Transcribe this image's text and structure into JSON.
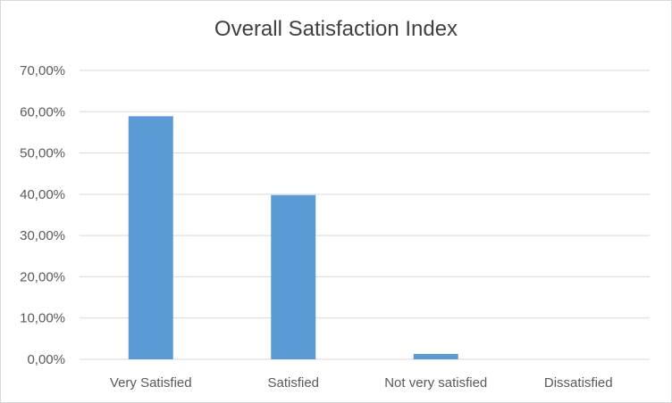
{
  "chart_data": {
    "type": "bar",
    "title": "Overall Satisfaction Index",
    "xlabel": "",
    "ylabel": "",
    "categories": [
      "Very Satisfied",
      "Satisfied",
      "Not very satisfied",
      "Dissatisfied"
    ],
    "values": [
      0.589,
      0.398,
      0.013,
      0.0
    ],
    "ylim": [
      0,
      0.7
    ],
    "y_ticks": [
      0,
      0.1,
      0.2,
      0.3,
      0.4,
      0.5,
      0.6,
      0.7
    ],
    "y_tick_labels": [
      "0,00%",
      "10,00%",
      "20,00%",
      "30,00%",
      "40,00%",
      "50,00%",
      "60,00%",
      "70,00%"
    ],
    "grid": true,
    "legend": "none",
    "colors": {
      "bar": "#5b9bd5",
      "grid": "#d9d9d9",
      "text": "#595959",
      "title": "#404040"
    }
  }
}
